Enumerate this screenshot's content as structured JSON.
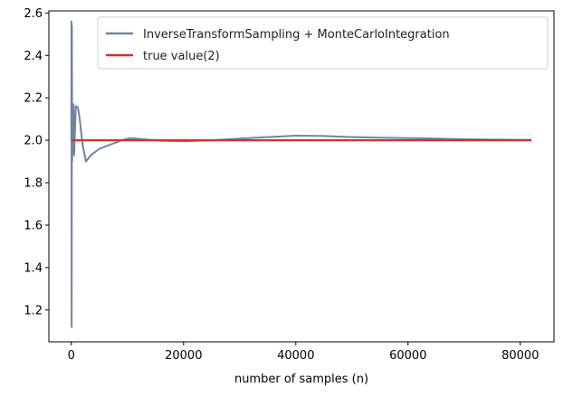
{
  "chart_data": {
    "type": "line",
    "title": "",
    "xlabel": "number of samples (n)",
    "ylabel": "",
    "xlim": [
      -4000,
      86000
    ],
    "ylim": [
      1.05,
      2.61
    ],
    "xticks": [
      0,
      20000,
      40000,
      60000,
      80000
    ],
    "xtick_labels": [
      "0",
      "20000",
      "40000",
      "60000",
      "80000"
    ],
    "yticks": [
      1.2,
      1.4,
      1.6,
      1.8,
      2.0,
      2.2,
      2.4,
      2.6
    ],
    "ytick_labels": [
      "1.2",
      "1.4",
      "1.6",
      "1.8",
      "2.0",
      "2.2",
      "2.4",
      "2.6"
    ],
    "grid": false,
    "legend_position": "top-right",
    "series": [
      {
        "name": "InverseTransformSampling + MonteCarloIntegration",
        "color": "#6f84a0",
        "x": [
          0,
          30,
          60,
          100,
          150,
          200,
          260,
          320,
          400,
          500,
          650,
          800,
          1000,
          1200,
          1500,
          2000,
          2600,
          3500,
          5000,
          7000,
          9000,
          10500,
          13000,
          16000,
          20000,
          25000,
          30000,
          35000,
          40000,
          45000,
          50000,
          55000,
          60000,
          65000,
          70000,
          75000,
          80000,
          82000
        ],
        "y": [
          2.0,
          2.56,
          1.12,
          2.54,
          1.9,
          2.14,
          1.95,
          2.1,
          2.17,
          1.93,
          2.05,
          2.16,
          2.16,
          2.15,
          2.1,
          1.98,
          1.9,
          1.93,
          1.96,
          1.98,
          2.0,
          2.01,
          2.005,
          1.998,
          1.995,
          2.0,
          2.008,
          2.015,
          2.022,
          2.02,
          2.015,
          2.012,
          2.01,
          2.008,
          2.005,
          2.003,
          2.002,
          2.002
        ]
      },
      {
        "name": "true value(2)",
        "color": "#d62f2f",
        "x": [
          0,
          82000
        ],
        "y": [
          2.0,
          2.0
        ]
      }
    ]
  }
}
